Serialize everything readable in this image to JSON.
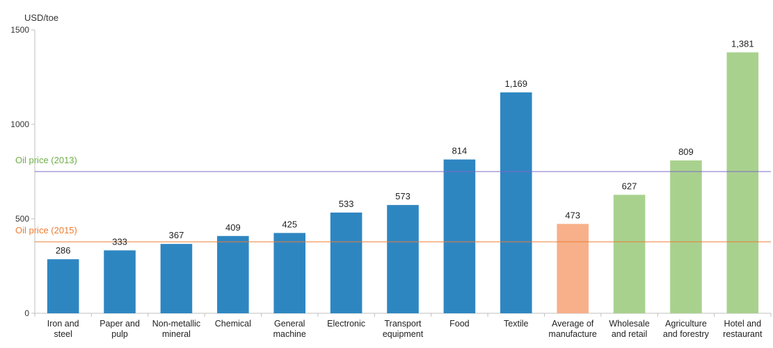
{
  "chart_data": {
    "type": "bar",
    "ylabel": "USD/toe",
    "ylim": [
      0,
      1500
    ],
    "yticks": [
      0,
      500,
      1000,
      1500
    ],
    "grid": false,
    "legend": "none",
    "categories": [
      [
        "Iron and",
        "steel"
      ],
      [
        "Paper and",
        "pulp"
      ],
      [
        "Non-metallic",
        "mineral"
      ],
      [
        "Chemical"
      ],
      [
        "General",
        "machine"
      ],
      [
        "Electronic"
      ],
      [
        "Transport",
        "equipment"
      ],
      [
        "Food"
      ],
      [
        "Textile"
      ],
      [
        "Average of",
        "manufacture"
      ],
      [
        "Wholesale",
        "and retail"
      ],
      [
        "Agriculture",
        "and forestry"
      ],
      [
        "Hotel and",
        "restaurant"
      ]
    ],
    "values": [
      286,
      333,
      367,
      409,
      425,
      533,
      573,
      814,
      1169,
      473,
      627,
      809,
      1381
    ],
    "value_labels": [
      "286",
      "333",
      "367",
      "409",
      "425",
      "533",
      "573",
      "814",
      "1,169",
      "473",
      "627",
      "809",
      "1,381"
    ],
    "bar_colors": [
      "#2e86c1",
      "#2e86c1",
      "#2e86c1",
      "#2e86c1",
      "#2e86c1",
      "#2e86c1",
      "#2e86c1",
      "#2e86c1",
      "#2e86c1",
      "#f7b08a",
      "#a9d18e",
      "#a9d18e",
      "#a9d18e"
    ],
    "reference_lines": [
      {
        "label": "Oil price (2013)",
        "value": 750,
        "line_color": "#7b68c8",
        "text_color": "#70ad47"
      },
      {
        "label": "Oil price (2015)",
        "value": 378,
        "line_color": "#ed7d31",
        "text_color": "#ed7d31"
      }
    ]
  }
}
